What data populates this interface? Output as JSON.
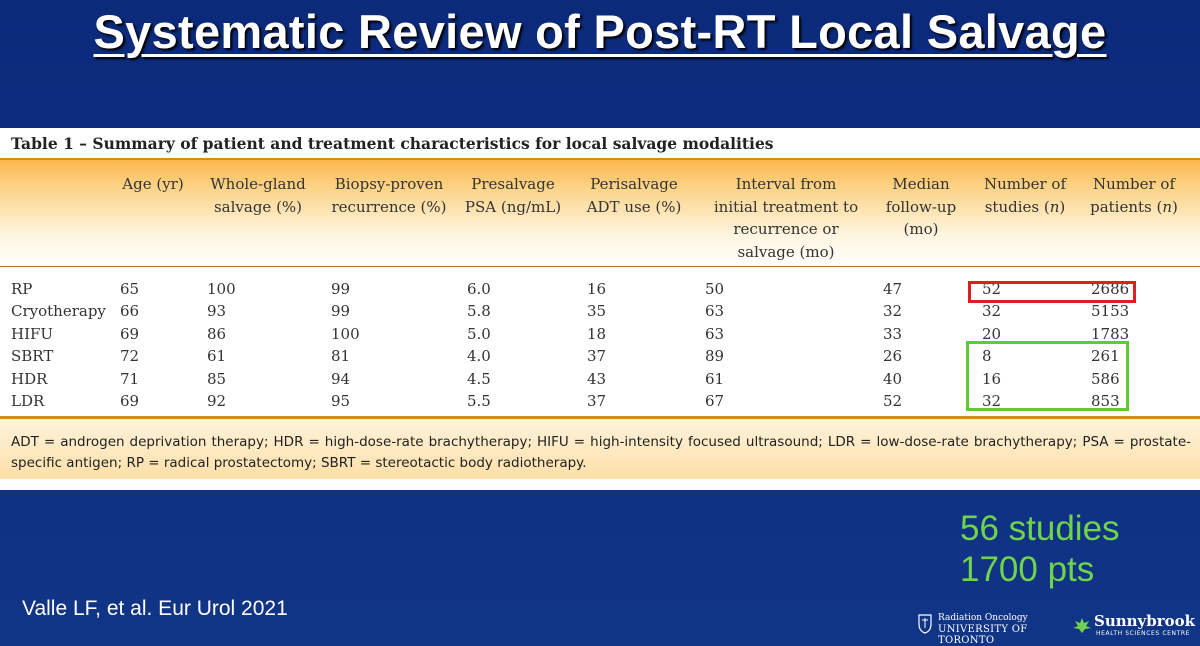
{
  "slide": {
    "title": "Systematic Review of Post-RT Local Salvage",
    "citation": "Valle LF, et al. Eur Urol 2021",
    "stats_line1": "56 studies",
    "stats_line2": "1700 pts"
  },
  "table": {
    "caption": "Table 1 – Summary of patient and treatment characteristics for local salvage modalities",
    "headers": [
      [
        "Age (yr)"
      ],
      [
        "Whole-gland",
        "salvage (%)"
      ],
      [
        "Biopsy-proven",
        "recurrence (%)"
      ],
      [
        "Presalvage",
        "PSA (ng/mL)"
      ],
      [
        "Perisalvage",
        "ADT use (%)"
      ],
      [
        "Interval from",
        "initial treatment to",
        "recurrence or",
        "salvage (mo)"
      ],
      [
        "Median",
        "follow-up",
        "(mo)"
      ],
      [
        "Number of",
        "studies (n)"
      ],
      [
        "Number of",
        "patients (n)"
      ]
    ],
    "rows": [
      {
        "label": "RP",
        "values": [
          "65",
          "100",
          "99",
          "6.0",
          "16",
          "50",
          "47",
          "52",
          "2686"
        ]
      },
      {
        "label": "Cryotherapy",
        "values": [
          "66",
          "93",
          "99",
          "5.8",
          "35",
          "63",
          "32",
          "32",
          "5153"
        ]
      },
      {
        "label": "HIFU",
        "values": [
          "69",
          "86",
          "100",
          "5.0",
          "18",
          "63",
          "33",
          "20",
          "1783"
        ]
      },
      {
        "label": "SBRT",
        "values": [
          "72",
          "61",
          "81",
          "4.0",
          "37",
          "89",
          "26",
          "8",
          "261"
        ]
      },
      {
        "label": "HDR",
        "values": [
          "71",
          "85",
          "94",
          "4.5",
          "43",
          "61",
          "40",
          "16",
          "586"
        ]
      },
      {
        "label": "LDR",
        "values": [
          "69",
          "92",
          "95",
          "5.5",
          "37",
          "67",
          "52",
          "32",
          "853"
        ]
      }
    ],
    "footnote": "ADT = androgen deprivation therapy; HDR = high-dose-rate brachytherapy; HIFU = high-intensity focused ultrasound; LDR = low-dose-rate brachytherapy; PSA = prostate-specific antigen; RP = radical prostatectomy; SBRT = stereotactic body radiotherapy."
  },
  "logos": {
    "uoft_line1": "Radiation Oncology",
    "uoft_line2": "UNIVERSITY OF TORONTO",
    "sb_line1": "Sunnybrook",
    "sb_line2": "HEALTH SCIENCES CENTRE"
  },
  "colors": {
    "background": "#0e2f82",
    "header_band": "#fbb64a",
    "highlight_red": "#e02020",
    "highlight_green": "#5fcc36",
    "stats_text": "#6fd44a"
  }
}
